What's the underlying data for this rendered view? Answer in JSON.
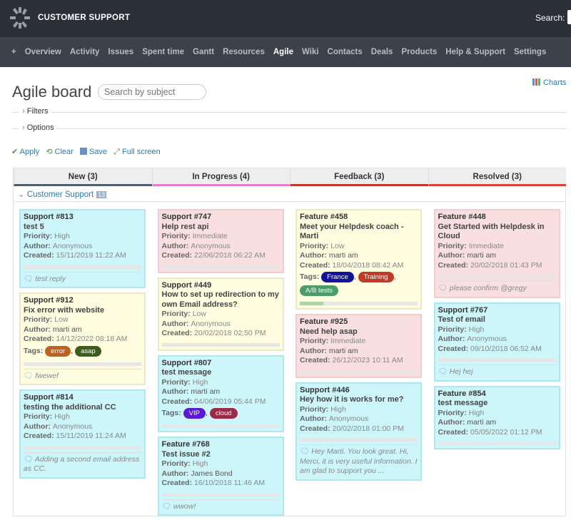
{
  "header": {
    "app_title": "CUSTOMER SUPPORT",
    "search_label": "Search:"
  },
  "nav": {
    "items": [
      "+",
      "Overview",
      "Activity",
      "Issues",
      "Spent time",
      "Gantt",
      "Resources",
      "Agile",
      "Wiki",
      "Contacts",
      "Deals",
      "Products",
      "Help & Support",
      "Settings"
    ],
    "active": "Agile"
  },
  "page": {
    "title": "Agile board",
    "search_placeholder": "Search by subject",
    "charts_label": "Charts",
    "filters_label": "Filters",
    "options_label": "Options"
  },
  "actions": {
    "apply": "Apply",
    "clear": "Clear",
    "save": "Save",
    "fullscreen": "Full screen"
  },
  "labels": {
    "priority": "Priority",
    "author": "Author",
    "created": "Created",
    "tags": "Tags"
  },
  "swimlane": {
    "name": "Customer Support",
    "count": "13"
  },
  "columns": [
    {
      "title": "New (3)",
      "color": "#4d5e70",
      "cards": [
        {
          "id": "Support #813",
          "subject": "test 5",
          "priority": "High",
          "author": "Anonymous",
          "created": "15/11/2019 11:22 AM",
          "color": "cyan",
          "progress": 0,
          "comment": "test reply"
        },
        {
          "id": "Support #912",
          "subject": "Fix error with website",
          "priority": "Low",
          "author": "marti am",
          "created": "14/12/2022 08:18 AM",
          "color": "yellow",
          "progress": 0,
          "tags": [
            {
              "name": "error",
              "color": "#c0621f"
            },
            {
              "name": "asap",
              "color": "#3b5e1f"
            }
          ],
          "comment": "fwewef"
        },
        {
          "id": "Support #814",
          "subject": "testing the additional CC",
          "priority": "High",
          "author": "Anonymous",
          "created": "15/11/2019 11:24 AM",
          "color": "cyan",
          "progress": 0,
          "comment": "Adding a second email address as CC."
        }
      ]
    },
    {
      "title": "In Progress (4)",
      "color": "#e77fcf",
      "cards": [
        {
          "id": "Support #747",
          "subject": "Help rest api",
          "priority": "Immediate",
          "author": "Anonymous",
          "created": "22/06/2018 06:22 AM",
          "color": "pink",
          "progress": 0
        },
        {
          "id": "Support #449",
          "subject": "How to set up redirection to my own Email address?",
          "priority": "Low",
          "author": "Anonymous",
          "created": "20/02/2018 02:50 PM",
          "color": "yellow",
          "progress": 0
        },
        {
          "id": "Support #807",
          "subject": "test message",
          "priority": "High",
          "author": "marti am",
          "created": "04/06/2019 05:44 PM",
          "color": "cyan",
          "progress": 0,
          "tags": [
            {
              "name": "VIP",
              "color": "#5a18d8"
            },
            {
              "name": "cloud",
              "color": "#9a2a46"
            }
          ]
        },
        {
          "id": "Feature #768",
          "subject": "Test issue #2",
          "priority": "High",
          "author": "James Bond",
          "created": "16/10/2018 11:46 AM",
          "color": "cyan",
          "progress": 0,
          "comment": "wwow!"
        }
      ]
    },
    {
      "title": "Feedback (3)",
      "color": "#c0392b",
      "cards": [
        {
          "id": "Feature #458",
          "subject": "Meet your Helpdesk coach - Marti",
          "priority": "Low",
          "author": "marti am",
          "created": "18/04/2018 08:42 AM",
          "color": "yellow",
          "progress": 20,
          "tags": [
            {
              "name": "France",
              "color": "#12129a"
            },
            {
              "name": "Training",
              "color": "#c23a25"
            },
            {
              "name": "A/B tests",
              "color": "#4d9a6a"
            }
          ]
        },
        {
          "id": "Feature #925",
          "subject": "Need help asap",
          "priority": "Immediate",
          "author": "marti am",
          "created": "26/12/2023 10:11 AM",
          "color": "pink",
          "progress": 0
        },
        {
          "id": "Support #446",
          "subject": "Hey how it is works for me?",
          "priority": "High",
          "author": "Anonymous",
          "created": "20/02/2018 01:00 PM",
          "color": "cyan",
          "progress": 0,
          "comment": "Hey Marti. You look great. Hi, Merci, it is very useful information. I am glad to support you ..."
        }
      ]
    },
    {
      "title": "Resolved (3)",
      "color": "#d9433a",
      "cards": [
        {
          "id": "Feature #448",
          "subject": "Get Started with Helpdesk in Cloud",
          "priority": "Immediate",
          "author": "marti am",
          "created": "20/02/2018 01:43 PM",
          "color": "pink",
          "progress": 0,
          "comment": "please confirm @gregy"
        },
        {
          "id": "Support #767",
          "subject": "Test of email",
          "priority": "High",
          "author": "Anonymous",
          "created": "09/10/2018 06:52 AM",
          "color": "cyan",
          "progress": 0,
          "comment": "Hej hej"
        },
        {
          "id": "Feature #854",
          "subject": "test message",
          "priority": "High",
          "author": "marti am",
          "created": "05/05/2022 01:12 PM",
          "color": "cyan",
          "progress": 0
        }
      ]
    }
  ]
}
